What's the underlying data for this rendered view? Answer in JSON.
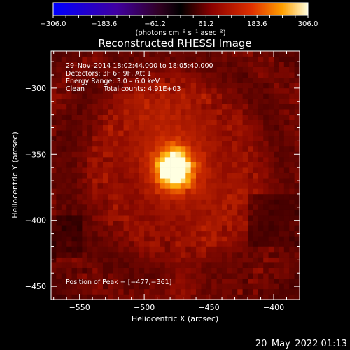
{
  "colorbar": {
    "ticks": [
      "−306.0",
      "−183.6",
      "−61.2",
      "61.2",
      "183.6",
      "306.0"
    ],
    "unit_label": "(photons cm⁻² s⁻¹ asec⁻²)",
    "range": [
      -306.0,
      306.0
    ]
  },
  "footer": {
    "timestamp": "20–May–2022 01:13"
  },
  "chart_data": {
    "type": "heatmap",
    "title": "Reconstructed RHESSI Image",
    "xlabel": "Heliocentric X (arcsec)",
    "ylabel": "Heliocentric Y (arcsec)",
    "xlim": [
      -572,
      -380
    ],
    "ylim": [
      -460,
      -272
    ],
    "x_ticks": [
      "−550",
      "−500",
      "−450",
      "−400"
    ],
    "x_tick_values": [
      -550,
      -500,
      -450,
      -400
    ],
    "y_ticks": [
      "−300",
      "−350",
      "−400",
      "−450"
    ],
    "y_tick_values": [
      -300,
      -350,
      -400,
      -450
    ],
    "annotations": [
      "29–Nov–2014 18:02:44.000 to 18:05:40.000",
      "Detectors: 3F 6F 9F, Att 1",
      "Energy Range: 3.0 – 6.0 keV",
      "Clean",
      "Total counts: 4.91E+03"
    ],
    "peak_label": "Position of Peak = [−477,−361]",
    "peak": {
      "x": -477,
      "y": -361,
      "value": 306.0
    }
  }
}
